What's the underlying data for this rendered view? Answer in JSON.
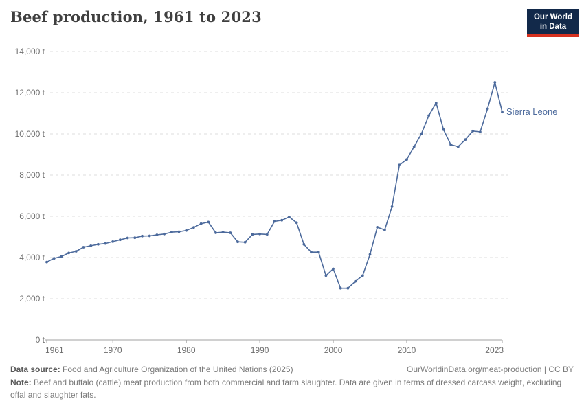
{
  "header": {
    "title": "Beef production, 1961 to 2023",
    "logo": {
      "line1": "Our World",
      "line2": "in Data"
    }
  },
  "colors": {
    "line": "#4C6A9C",
    "entity_label": "#4C6A9C",
    "grid": "#dcdcdc",
    "axis": "#a0a0a0",
    "tick_text": "#6e6e6e",
    "logo_navy": "#12294a",
    "logo_red": "#d6311f"
  },
  "chart_data": {
    "type": "line",
    "title": "Beef production, 1961 to 2023",
    "entity": "Sierra Leone",
    "unit": "t",
    "xlim": [
      1961,
      2023
    ],
    "ylim": [
      0,
      14000
    ],
    "x_ticks": [
      1961,
      1970,
      1980,
      1990,
      2000,
      2010,
      2023
    ],
    "y_ticks": [
      0,
      2000,
      4000,
      6000,
      8000,
      10000,
      12000,
      14000
    ],
    "grid": "dashed-horizontal",
    "legend": "inline-end-label",
    "years": [
      1961,
      1962,
      1963,
      1964,
      1965,
      1966,
      1967,
      1968,
      1969,
      1970,
      1971,
      1972,
      1973,
      1974,
      1975,
      1976,
      1977,
      1978,
      1979,
      1980,
      1981,
      1982,
      1983,
      1984,
      1985,
      1986,
      1987,
      1988,
      1989,
      1990,
      1991,
      1992,
      1993,
      1994,
      1995,
      1996,
      1997,
      1998,
      1999,
      2000,
      2001,
      2002,
      2003,
      2004,
      2005,
      2006,
      2007,
      2008,
      2009,
      2010,
      2011,
      2012,
      2013,
      2014,
      2015,
      2016,
      2017,
      2018,
      2019,
      2020,
      2021,
      2022,
      2023
    ],
    "values": [
      3780,
      3960,
      4050,
      4220,
      4300,
      4500,
      4570,
      4640,
      4680,
      4770,
      4860,
      4950,
      4960,
      5040,
      5050,
      5100,
      5140,
      5230,
      5250,
      5310,
      5460,
      5640,
      5720,
      5200,
      5230,
      5200,
      4760,
      4740,
      5120,
      5140,
      5120,
      5750,
      5810,
      5970,
      5690,
      4640,
      4260,
      4260,
      3120,
      3450,
      2510,
      2510,
      2840,
      3120,
      4150,
      5470,
      5340,
      6470,
      8490,
      8760,
      9380,
      10010,
      10890,
      11500,
      10210,
      9480,
      9380,
      9730,
      10140,
      10100,
      11220,
      12500,
      11060
    ]
  },
  "footer": {
    "source_label": "Data source:",
    "source_text": "Food and Agriculture Organization of the United Nations (2025)",
    "link": "OurWorldinData.org/meat-production | CC BY",
    "note_label": "Note:",
    "note_text": "Beef and buffalo (cattle) meat production from both commercial and farm slaughter. Data are given in terms of dressed carcass weight, excluding offal and slaughter fats."
  }
}
